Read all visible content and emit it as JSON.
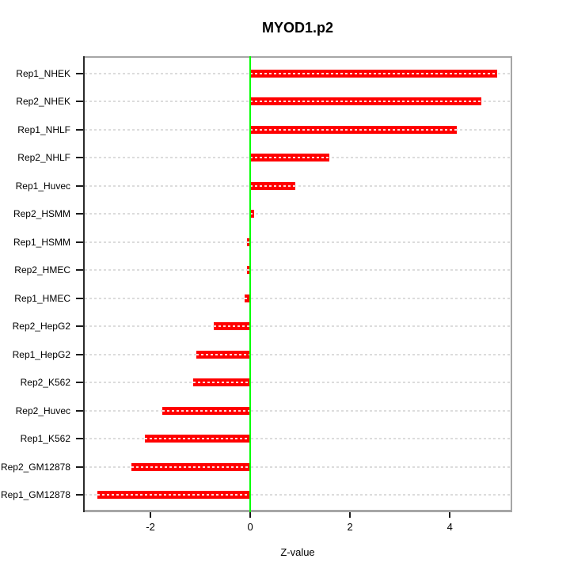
{
  "chart_data": {
    "type": "bar",
    "orientation": "horizontal",
    "title": "MYOD1.p2",
    "xlabel": "Z-value",
    "ylabel": "",
    "legend": "none",
    "grid": "horizontal-dashed",
    "categories": [
      "Rep1_NHEK",
      "Rep2_NHEK",
      "Rep1_NHLF",
      "Rep2_NHLF",
      "Rep1_Huvec",
      "Rep2_HSMM",
      "Rep1_HSMM",
      "Rep2_HMEC",
      "Rep1_HMEC",
      "Rep2_HepG2",
      "Rep1_HepG2",
      "Rep2_K562",
      "Rep2_Huvec",
      "Rep1_K562",
      "Rep2_GM12878",
      "Rep1_GM12878"
    ],
    "values": [
      4.95,
      4.63,
      4.14,
      1.59,
      0.9,
      0.08,
      -0.07,
      -0.07,
      -0.11,
      -0.73,
      -1.08,
      -1.14,
      -1.77,
      -2.12,
      -2.38,
      -3.07
    ],
    "xlim": [
      -3.35,
      5.25
    ],
    "xticks": [
      -2,
      0,
      2,
      4
    ],
    "xtick_labels": [
      "-2",
      "0",
      "2",
      "4"
    ],
    "colors": {
      "bar": "#ff0000",
      "bar_center_dash": "#ffffff",
      "zero_line": "#00ff00",
      "gridline": "#dcdcdc",
      "box": "#a6a6a6",
      "axis": "#1a1a1a",
      "background": "#ffffff"
    }
  }
}
